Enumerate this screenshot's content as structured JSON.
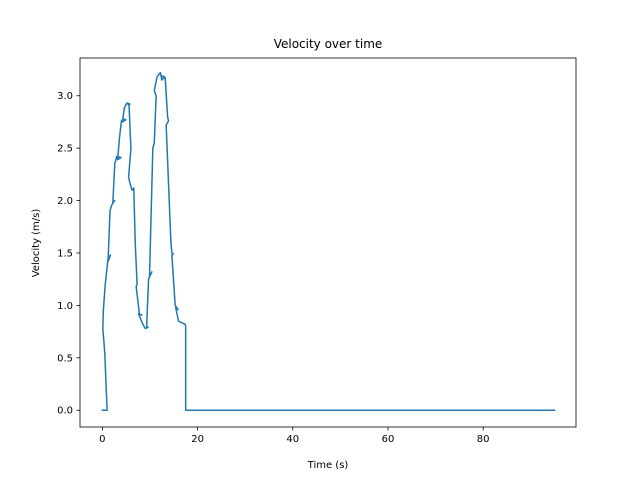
{
  "chart_data": {
    "type": "line",
    "title": "Velocity over time",
    "xlabel": "Time (s)",
    "ylabel": "Velocity (m/s)",
    "xlim": [
      -4.7,
      99.5
    ],
    "ylim": [
      -0.16,
      3.36
    ],
    "x_ticks": [
      0,
      20,
      40,
      60,
      80
    ],
    "x_tick_labels": [
      "0",
      "20",
      "40",
      "60",
      "80"
    ],
    "y_ticks": [
      0.0,
      0.5,
      1.0,
      1.5,
      2.0,
      2.5,
      3.0
    ],
    "y_tick_labels": [
      "0.0",
      "0.5",
      "1.0",
      "1.5",
      "2.0",
      "2.5",
      "3.0"
    ],
    "grid": false,
    "legend": "none",
    "series": [
      {
        "color": "#1f77b4",
        "x": [
          0,
          0.8,
          1.0,
          0.5,
          0.1,
          0.2,
          0.6,
          1.2,
          1.5,
          1.7,
          1.2,
          1.6,
          1.9,
          2.4,
          2.6,
          2.2,
          2.6,
          3.0,
          3.3,
          3.9,
          3.2,
          3.6,
          4.0,
          4.4,
          4.9,
          4.2,
          4.6,
          5.0,
          5.3,
          5.8,
          5.2,
          5.6,
          6.0,
          5.5,
          6.2,
          6.6,
          6.9,
          7.3,
          7.1,
          7.8,
          8.3,
          7.6,
          8.5,
          9.0,
          9.6,
          9.3,
          9.7,
          10.4,
          9.9,
          10.6,
          10.9,
          11.3,
          10.9,
          11.5,
          11.8,
          12.2,
          12.5,
          12.7,
          13.1,
          12.4,
          13.2,
          13.7,
          13.9,
          13.4,
          14.4,
          14.6,
          14.9,
          14.6,
          15.3,
          15.9,
          15.4,
          16.0,
          17.4,
          17.5,
          17.5,
          17.5,
          30,
          50,
          70,
          95
        ],
        "y": [
          0.0,
          0.0,
          0.0,
          0.55,
          0.78,
          0.95,
          1.2,
          1.45,
          1.47,
          1.48,
          1.42,
          1.9,
          1.95,
          1.99,
          2.0,
          1.98,
          2.35,
          2.42,
          2.42,
          2.41,
          2.39,
          2.6,
          2.76,
          2.78,
          2.77,
          2.75,
          2.88,
          2.92,
          2.93,
          2.92,
          2.93,
          2.91,
          2.5,
          2.22,
          2.1,
          2.12,
          1.6,
          1.2,
          1.18,
          0.91,
          0.91,
          0.92,
          0.82,
          0.78,
          0.79,
          0.8,
          1.25,
          1.32,
          1.27,
          2.5,
          2.55,
          3.0,
          3.05,
          3.18,
          3.2,
          3.22,
          3.15,
          3.16,
          3.18,
          3.19,
          3.17,
          2.8,
          2.76,
          2.72,
          1.6,
          1.5,
          1.49,
          1.48,
          1.0,
          0.96,
          0.98,
          0.85,
          0.82,
          0.8,
          0.01,
          0.0,
          0.0,
          0.0,
          0.0,
          0.0
        ]
      }
    ]
  }
}
